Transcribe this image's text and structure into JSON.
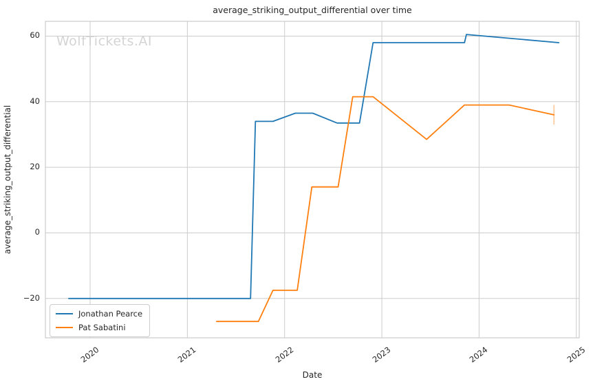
{
  "chart_data": {
    "type": "line",
    "title": "average_striking_output_differential over time",
    "xlabel": "Date",
    "ylabel": "average_striking_output_differential",
    "watermark": "WolfTickets.AI",
    "x_tick_values": [
      2020,
      2021,
      2022,
      2023,
      2024,
      2025
    ],
    "x_tick_labels": [
      "2020",
      "2021",
      "2022",
      "2023",
      "2024",
      "2025"
    ],
    "y_tick_values": [
      -20,
      0,
      20,
      40,
      60
    ],
    "y_tick_labels": [
      "−20",
      "0",
      "20",
      "40",
      "60"
    ],
    "xlim": [
      2019.54,
      2025.03
    ],
    "ylim": [
      -32,
      64.5
    ],
    "grid": true,
    "legend_position": "lower-left",
    "colors": {
      "grid": "#cccccc",
      "axes_edge": "#cccccc",
      "text": "#262626",
      "watermark": "#d4d4d4",
      "background": "#ffffff"
    },
    "series": [
      {
        "name": "Jonathan Pearce",
        "color": "#1f77b4",
        "points": [
          [
            2019.78,
            -20
          ],
          [
            2021.65,
            -20
          ],
          [
            2021.7,
            34
          ],
          [
            2021.88,
            34
          ],
          [
            2022.11,
            36.5
          ],
          [
            2022.29,
            36.5
          ],
          [
            2022.54,
            33.5
          ],
          [
            2022.77,
            33.5
          ],
          [
            2022.91,
            58
          ],
          [
            2023.85,
            58
          ],
          [
            2023.87,
            60.5
          ],
          [
            2024.82,
            58
          ]
        ]
      },
      {
        "name": "Pat Sabatini",
        "color": "#ff7f0e",
        "points": [
          [
            2021.3,
            -27
          ],
          [
            2021.73,
            -27
          ],
          [
            2021.88,
            -17.5
          ],
          [
            2022.13,
            -17.5
          ],
          [
            2022.28,
            14
          ],
          [
            2022.55,
            14
          ],
          [
            2022.7,
            41.5
          ],
          [
            2022.91,
            41.5
          ],
          [
            2023.46,
            28.5
          ],
          [
            2023.85,
            39
          ],
          [
            2024.31,
            39
          ],
          [
            2024.77,
            36
          ]
        ],
        "error_bar": {
          "x": 2024.77,
          "y_low": 33,
          "y_high": 39
        }
      }
    ]
  }
}
